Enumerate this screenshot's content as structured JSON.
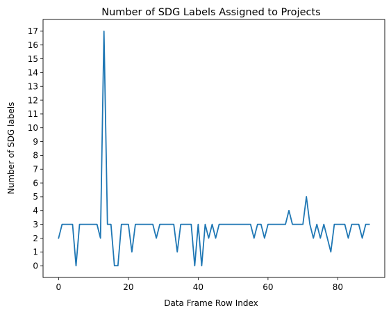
{
  "chart_data": {
    "type": "line",
    "title": "Number of SDG Labels Assigned to Projects",
    "xlabel": "Data Frame Row Index",
    "ylabel": "Number of SDG labels",
    "xlim": [
      -4.45,
      93.45
    ],
    "ylim": [
      -0.85,
      17.85
    ],
    "xticks": [
      0,
      20,
      40,
      60,
      80
    ],
    "yticks": [
      0,
      1,
      2,
      3,
      4,
      5,
      6,
      7,
      8,
      9,
      10,
      11,
      12,
      13,
      14,
      15,
      16,
      17
    ],
    "grid": false,
    "legend": "none",
    "series": [
      {
        "color": "#1f77b4",
        "x": [
          0,
          1,
          2,
          3,
          4,
          5,
          6,
          7,
          8,
          9,
          10,
          11,
          12,
          13,
          14,
          15,
          16,
          17,
          18,
          19,
          20,
          21,
          22,
          23,
          24,
          25,
          26,
          27,
          28,
          29,
          30,
          31,
          32,
          33,
          34,
          35,
          36,
          37,
          38,
          39,
          40,
          41,
          42,
          43,
          44,
          45,
          46,
          47,
          48,
          49,
          50,
          51,
          52,
          53,
          54,
          55,
          56,
          57,
          58,
          59,
          60,
          61,
          62,
          63,
          64,
          65,
          66,
          67,
          68,
          69,
          70,
          71,
          72,
          73,
          74,
          75,
          76,
          77,
          78,
          79,
          80,
          81,
          82,
          83,
          84,
          85,
          86,
          87,
          88,
          89
        ],
        "values": [
          2,
          3,
          3,
          3,
          3,
          0,
          3,
          3,
          3,
          3,
          3,
          3,
          2,
          17,
          3,
          3,
          0,
          0,
          3,
          3,
          3,
          1,
          3,
          3,
          3,
          3,
          3,
          3,
          2,
          3,
          3,
          3,
          3,
          3,
          1,
          3,
          3,
          3,
          3,
          0,
          3,
          0,
          3,
          2,
          3,
          2,
          3,
          3,
          3,
          3,
          3,
          3,
          3,
          3,
          3,
          3,
          2,
          3,
          3,
          2,
          3,
          3,
          3,
          3,
          3,
          3,
          4,
          3,
          3,
          3,
          3,
          5,
          3,
          2,
          3,
          2,
          3,
          2,
          1,
          3,
          3,
          3,
          3,
          2,
          3,
          3,
          3,
          2,
          3,
          3
        ]
      }
    ]
  }
}
